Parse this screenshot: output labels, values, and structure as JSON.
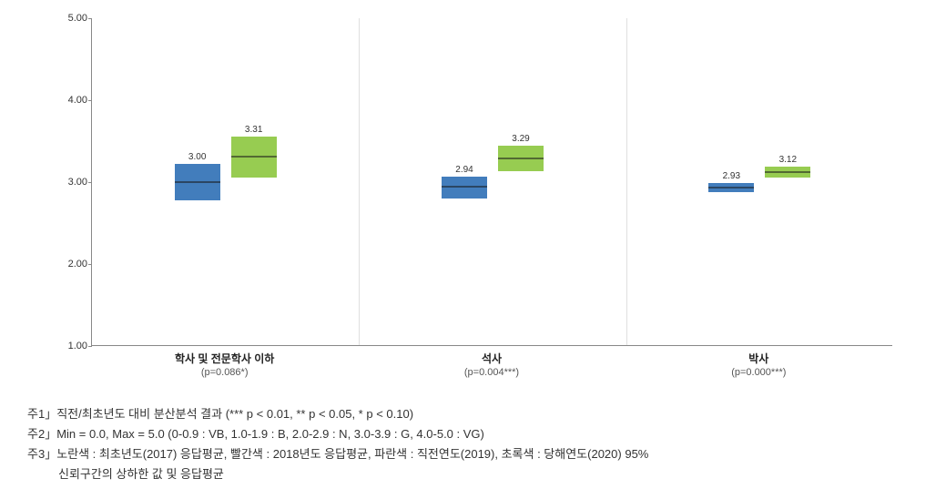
{
  "chart": {
    "type": "boxplot",
    "ylim": [
      1.0,
      5.0
    ],
    "yticks": [
      1.0,
      2.0,
      3.0,
      4.0,
      5.0
    ],
    "ytick_labels": [
      "1.00",
      "2.00",
      "3.00",
      "4.00",
      "5.00"
    ],
    "background_color": "#ffffff",
    "axis_color": "#888888",
    "panel_sep_color": "#e0e0e0",
    "label_fontsize": 12,
    "tick_fontsize": 11,
    "value_fontsize": 10,
    "colors": {
      "blue": "#2e6fb5",
      "green": "#8cc63e"
    },
    "groups": [
      {
        "label": "학사 및 전문학사 이하",
        "sublabel": "(p=0.086*)",
        "series": [
          {
            "color_key": "blue",
            "low": 2.78,
            "mean": 3.0,
            "high": 3.22,
            "value_label": "3.00"
          },
          {
            "color_key": "green",
            "low": 3.05,
            "mean": 3.31,
            "high": 3.56,
            "value_label": "3.31"
          }
        ]
      },
      {
        "label": "석사",
        "sublabel": "(p=0.004***)",
        "series": [
          {
            "color_key": "blue",
            "low": 2.8,
            "mean": 2.94,
            "high": 3.07,
            "value_label": "2.94"
          },
          {
            "color_key": "green",
            "low": 3.13,
            "mean": 3.29,
            "high": 3.45,
            "value_label": "3.29"
          }
        ]
      },
      {
        "label": "박사",
        "sublabel": "(p=0.000***)",
        "series": [
          {
            "color_key": "blue",
            "low": 2.88,
            "mean": 2.93,
            "high": 2.99,
            "value_label": "2.93"
          },
          {
            "color_key": "green",
            "low": 3.05,
            "mean": 3.12,
            "high": 3.19,
            "value_label": "3.12"
          }
        ]
      }
    ]
  },
  "footnotes": {
    "n1": "주1」직전/최초년도 대비 분산분석 결과 (*** p < 0.01, ** p < 0.05, * p < 0.10)",
    "n2": "주2」Min = 0.0, Max = 5.0 (0-0.9 : VB, 1.0-1.9 : B, 2.0-2.9 : N, 3.0-3.9 : G, 4.0-5.0 : VG)",
    "n3a": "주3」노란색 : 최초년도(2017) 응답평균, 빨간색 : 2018년도 응답평균, 파란색 : 직전연도(2019), 초록색 : 당해연도(2020) 95%",
    "n3b": "신뢰구간의 상하한 값 및 응답평균"
  }
}
